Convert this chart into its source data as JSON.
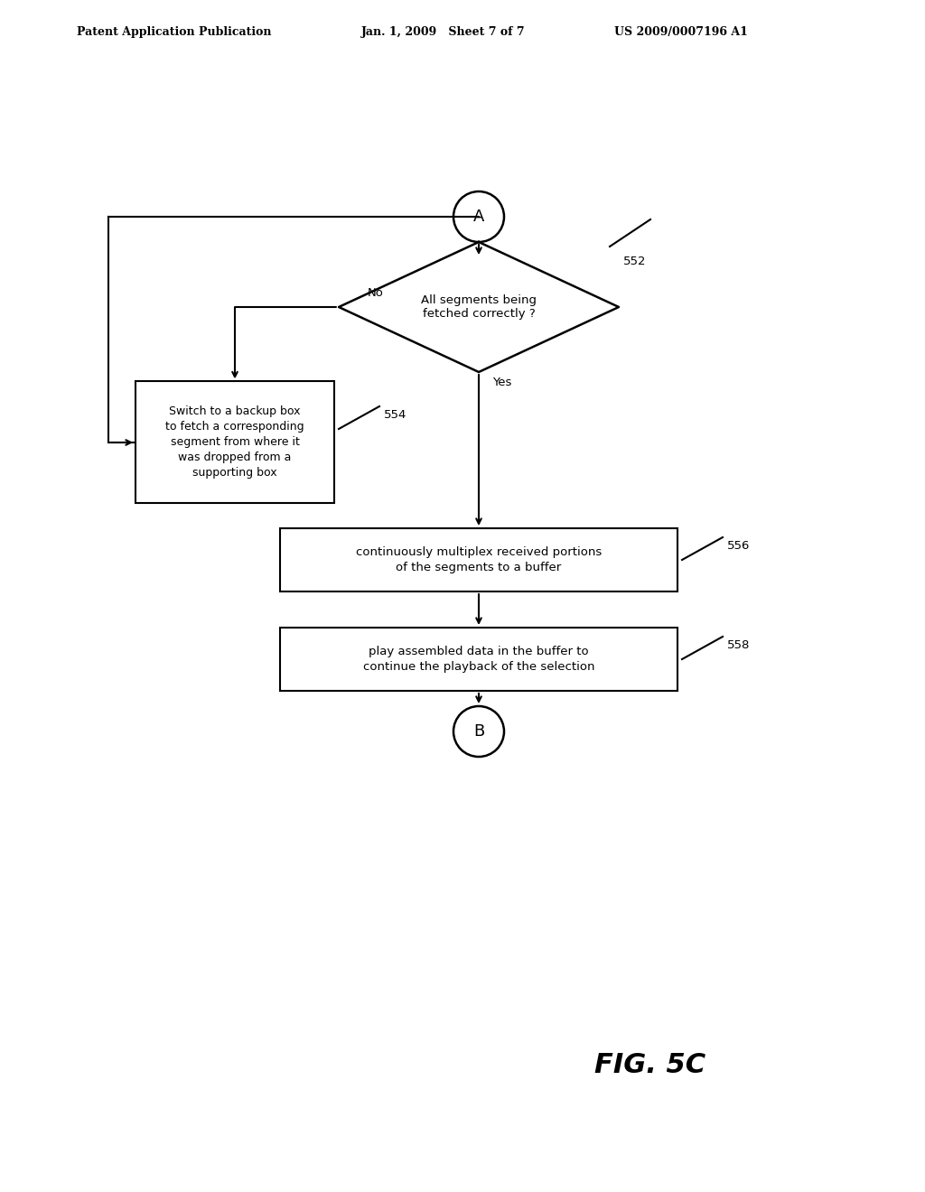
{
  "bg_color": "#ffffff",
  "header_left": "Patent Application Publication",
  "header_mid": "Jan. 1, 2009   Sheet 7 of 7",
  "header_right": "US 2009/0007196 A1",
  "fig_label": "FIG. 5C",
  "connector_A": "A",
  "connector_B": "B",
  "diamond_text": "All segments being\nfetched correctly ?",
  "diamond_label": "552",
  "box_backup_text": "Switch to a backup box\nto fetch a corresponding\nsegment from where it\nwas dropped from a\nsupporting box",
  "box_backup_label": "554",
  "box_multiplex_text": "continuously multiplex received portions\nof the segments to a buffer",
  "box_multiplex_label": "556",
  "box_play_text": "play assembled data in the buffer to\ncontinue the playback of the selection",
  "box_play_label": "558",
  "label_no": "No",
  "label_yes": "Yes"
}
